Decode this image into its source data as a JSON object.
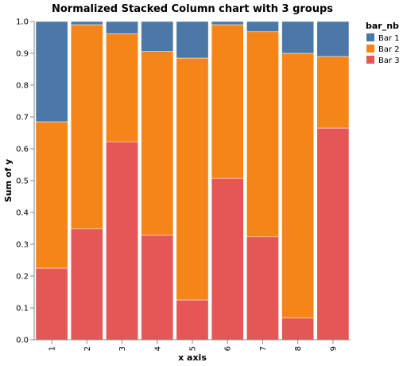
{
  "chart_data": {
    "type": "bar",
    "stacked": true,
    "normalized": true,
    "title": "Normalized Stacked Column chart with 3 groups",
    "xlabel": "x axis",
    "ylabel": "Sum of y",
    "categories": [
      "1",
      "2",
      "3",
      "4",
      "5",
      "6",
      "7",
      "8",
      "9"
    ],
    "ylim": [
      0,
      1
    ],
    "yticks": [
      "0.0",
      "0.1",
      "0.2",
      "0.3",
      "0.4",
      "0.5",
      "0.6",
      "0.7",
      "0.8",
      "0.9",
      "1.0"
    ],
    "grid": false,
    "legend": {
      "title": "bar_nb",
      "placement": "top-right"
    },
    "series": [
      {
        "name": "Bar 3",
        "color": "#e45756",
        "values": [
          0.225,
          0.348,
          0.622,
          0.328,
          0.125,
          0.507,
          0.323,
          0.068,
          0.665
        ]
      },
      {
        "name": "Bar 2",
        "color": "#f58518",
        "values": [
          0.46,
          0.642,
          0.34,
          0.578,
          0.76,
          0.483,
          0.645,
          0.832,
          0.225
        ]
      },
      {
        "name": "Bar 1",
        "color": "#4c78a8",
        "values": [
          0.315,
          0.01,
          0.038,
          0.094,
          0.115,
          0.01,
          0.032,
          0.1,
          0.11
        ]
      }
    ],
    "legend_order": [
      "Bar 1",
      "Bar 2",
      "Bar 3"
    ]
  }
}
